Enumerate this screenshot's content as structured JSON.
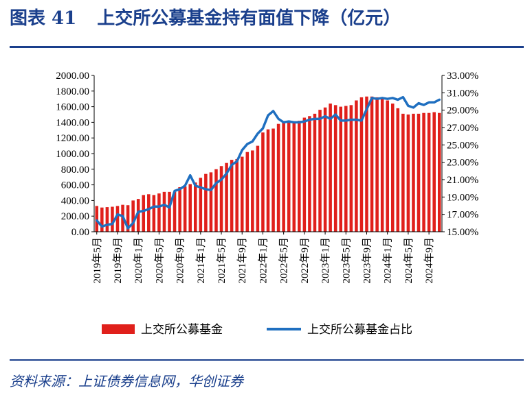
{
  "figure": {
    "number": "图表 41",
    "title": "上交所公募基金持有面值下降（亿元）",
    "source": "资料来源：上证债券信息网，华创证券"
  },
  "chart_data": {
    "type": "bar",
    "left_axis": {
      "ylim": [
        0,
        2000
      ],
      "tick_labels": [
        "0.00",
        "200.00",
        "400.00",
        "600.00",
        "800.00",
        "1000.00",
        "1200.00",
        "1400.00",
        "1600.00",
        "1800.00",
        "2000.00"
      ]
    },
    "right_axis": {
      "ylim": [
        15,
        33
      ],
      "tick_labels": [
        "15.00%",
        "17.00%",
        "19.00%",
        "21.00%",
        "23.00%",
        "25.00%",
        "27.00%",
        "29.00%",
        "31.00%",
        "33.00%"
      ]
    },
    "x_tick_labels": [
      "2019年5月",
      "2019年9月",
      "2020年1月",
      "2020年5月",
      "2020年9月",
      "2021年1月",
      "2021年5月",
      "2021年9月",
      "2022年1月",
      "2022年5月",
      "2022年9月",
      "2023年1月",
      "2023年5月",
      "2023年9月",
      "2024年1月",
      "2024年5月",
      "2024年9月"
    ],
    "x": [
      "2019-05",
      "2019-06",
      "2019-07",
      "2019-08",
      "2019-09",
      "2019-10",
      "2019-11",
      "2019-12",
      "2020-01",
      "2020-02",
      "2020-03",
      "2020-04",
      "2020-05",
      "2020-06",
      "2020-07",
      "2020-08",
      "2020-09",
      "2020-10",
      "2020-11",
      "2020-12",
      "2021-01",
      "2021-02",
      "2021-03",
      "2021-04",
      "2021-05",
      "2021-06",
      "2021-07",
      "2021-08",
      "2021-09",
      "2021-10",
      "2021-11",
      "2021-12",
      "2022-01",
      "2022-02",
      "2022-03",
      "2022-04",
      "2022-05",
      "2022-06",
      "2022-07",
      "2022-08",
      "2022-09",
      "2022-10",
      "2022-11",
      "2022-12",
      "2023-01",
      "2023-02",
      "2023-03",
      "2023-04",
      "2023-05",
      "2023-06",
      "2023-07",
      "2023-08",
      "2023-09",
      "2023-10",
      "2023-11",
      "2023-12",
      "2024-01",
      "2024-02",
      "2024-03",
      "2024-04",
      "2024-05",
      "2024-06",
      "2024-07",
      "2024-08",
      "2024-09",
      "2024-10",
      "2024-11"
    ],
    "series": [
      {
        "name": "上交所公募基金",
        "type": "bar",
        "axis": "left",
        "color": "#e0201b",
        "values": [
          330,
          310,
          315,
          320,
          330,
          345,
          340,
          400,
          420,
          470,
          480,
          470,
          490,
          510,
          510,
          510,
          570,
          580,
          610,
          630,
          690,
          740,
          760,
          800,
          840,
          880,
          920,
          930,
          960,
          1020,
          1040,
          1100,
          1270,
          1310,
          1320,
          1380,
          1400,
          1420,
          1400,
          1420,
          1460,
          1480,
          1510,
          1560,
          1590,
          1640,
          1620,
          1600,
          1610,
          1620,
          1680,
          1720,
          1730,
          1730,
          1720,
          1700,
          1680,
          1640,
          1580,
          1510,
          1500,
          1510,
          1510,
          1520,
          1520,
          1530,
          1520
        ]
      },
      {
        "name": "上交所公募基金占比",
        "type": "line",
        "axis": "right",
        "color": "#1f6fc0",
        "values": [
          16.3,
          15.6,
          15.8,
          15.9,
          17.0,
          16.8,
          15.4,
          16.0,
          17.3,
          17.4,
          17.6,
          17.9,
          17.9,
          18.1,
          17.8,
          19.7,
          19.9,
          20.3,
          21.5,
          20.3,
          20.1,
          19.9,
          19.8,
          20.6,
          21.0,
          21.7,
          22.7,
          23.1,
          24.4,
          25.1,
          25.4,
          26.3,
          26.9,
          28.4,
          28.9,
          28.0,
          27.6,
          27.7,
          27.6,
          27.6,
          27.7,
          27.9,
          28.0,
          28.0,
          28.3,
          28.0,
          28.5,
          27.8,
          27.8,
          27.9,
          27.9,
          27.8,
          29.1,
          30.4,
          30.3,
          30.4,
          30.3,
          30.4,
          30.2,
          30.5,
          29.5,
          29.3,
          29.8,
          29.6,
          29.9,
          29.9,
          30.2
        ]
      }
    ],
    "legend_position": "bottom-center",
    "grid": false
  }
}
